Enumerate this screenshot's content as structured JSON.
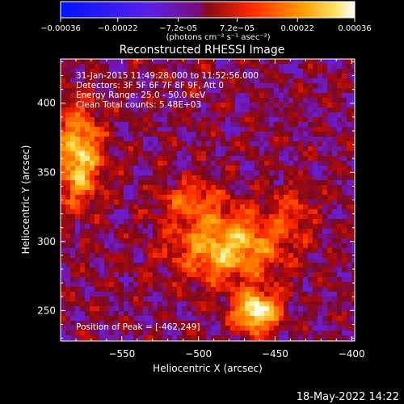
{
  "colorbar": {
    "ticks": [
      "-0.00036",
      "-0.00022",
      "-7.2e-05",
      "7.2e-05",
      "0.00022",
      "0.00036"
    ],
    "unit_label": "(photons cm⁻² s⁻¹ asec⁻²)",
    "range": [
      -0.00036,
      0.00036
    ],
    "colormap": "rhessi-signed",
    "colors": {
      "neg_end": "#0014ff",
      "neg_mid": "#6a1bd6",
      "pos_low": "#8a0b16",
      "pos_mid": "#ff2a00",
      "pos_high": "#ff9a00",
      "pos_end": "#ffffff"
    }
  },
  "chart_data": {
    "type": "heatmap",
    "title": "Reconstructed RHESSI Image",
    "xlabel": "Heliocentric X (arcsec)",
    "ylabel": "Heliocentric Y (arcsec)",
    "xlim": [
      -590,
      -398
    ],
    "ylim": [
      228,
      432
    ],
    "xticks": [
      -550,
      -500,
      -450,
      -400
    ],
    "yticks": [
      250,
      300,
      350,
      400
    ],
    "xtick_labels": [
      "−550",
      "−500",
      "−450",
      "−400"
    ],
    "ytick_labels": [
      "250",
      "300",
      "350",
      "400"
    ],
    "peak": [
      -462,
      249
    ],
    "sources": [
      {
        "x": -481,
        "y": 296,
        "amp": 0.00028,
        "sx": 24,
        "sy": 18
      },
      {
        "x": -462,
        "y": 249,
        "amp": 0.00036,
        "sx": 10,
        "sy": 10
      },
      {
        "x": -578,
        "y": 362,
        "amp": 0.0003,
        "sx": 10,
        "sy": 24
      },
      {
        "x": -505,
        "y": 330,
        "amp": 0.00014,
        "sx": 14,
        "sy": 10
      },
      {
        "x": -440,
        "y": 322,
        "amp": 0.0001,
        "sx": 10,
        "sy": 14
      }
    ],
    "annotations": [
      "31-Jan-2015 11:49:28.000 to 11:52:56.000",
      "Detectors: 3F 5F 6F 7F 8F 9F, Att 0",
      "Energy Range: 25.0 - 50.0 keV",
      "Clean    Total counts: 5.48E+03"
    ],
    "peak_label": "Position of Peak = [-462,249]"
  },
  "footer": {
    "date": "18-May-2022 14:22"
  }
}
